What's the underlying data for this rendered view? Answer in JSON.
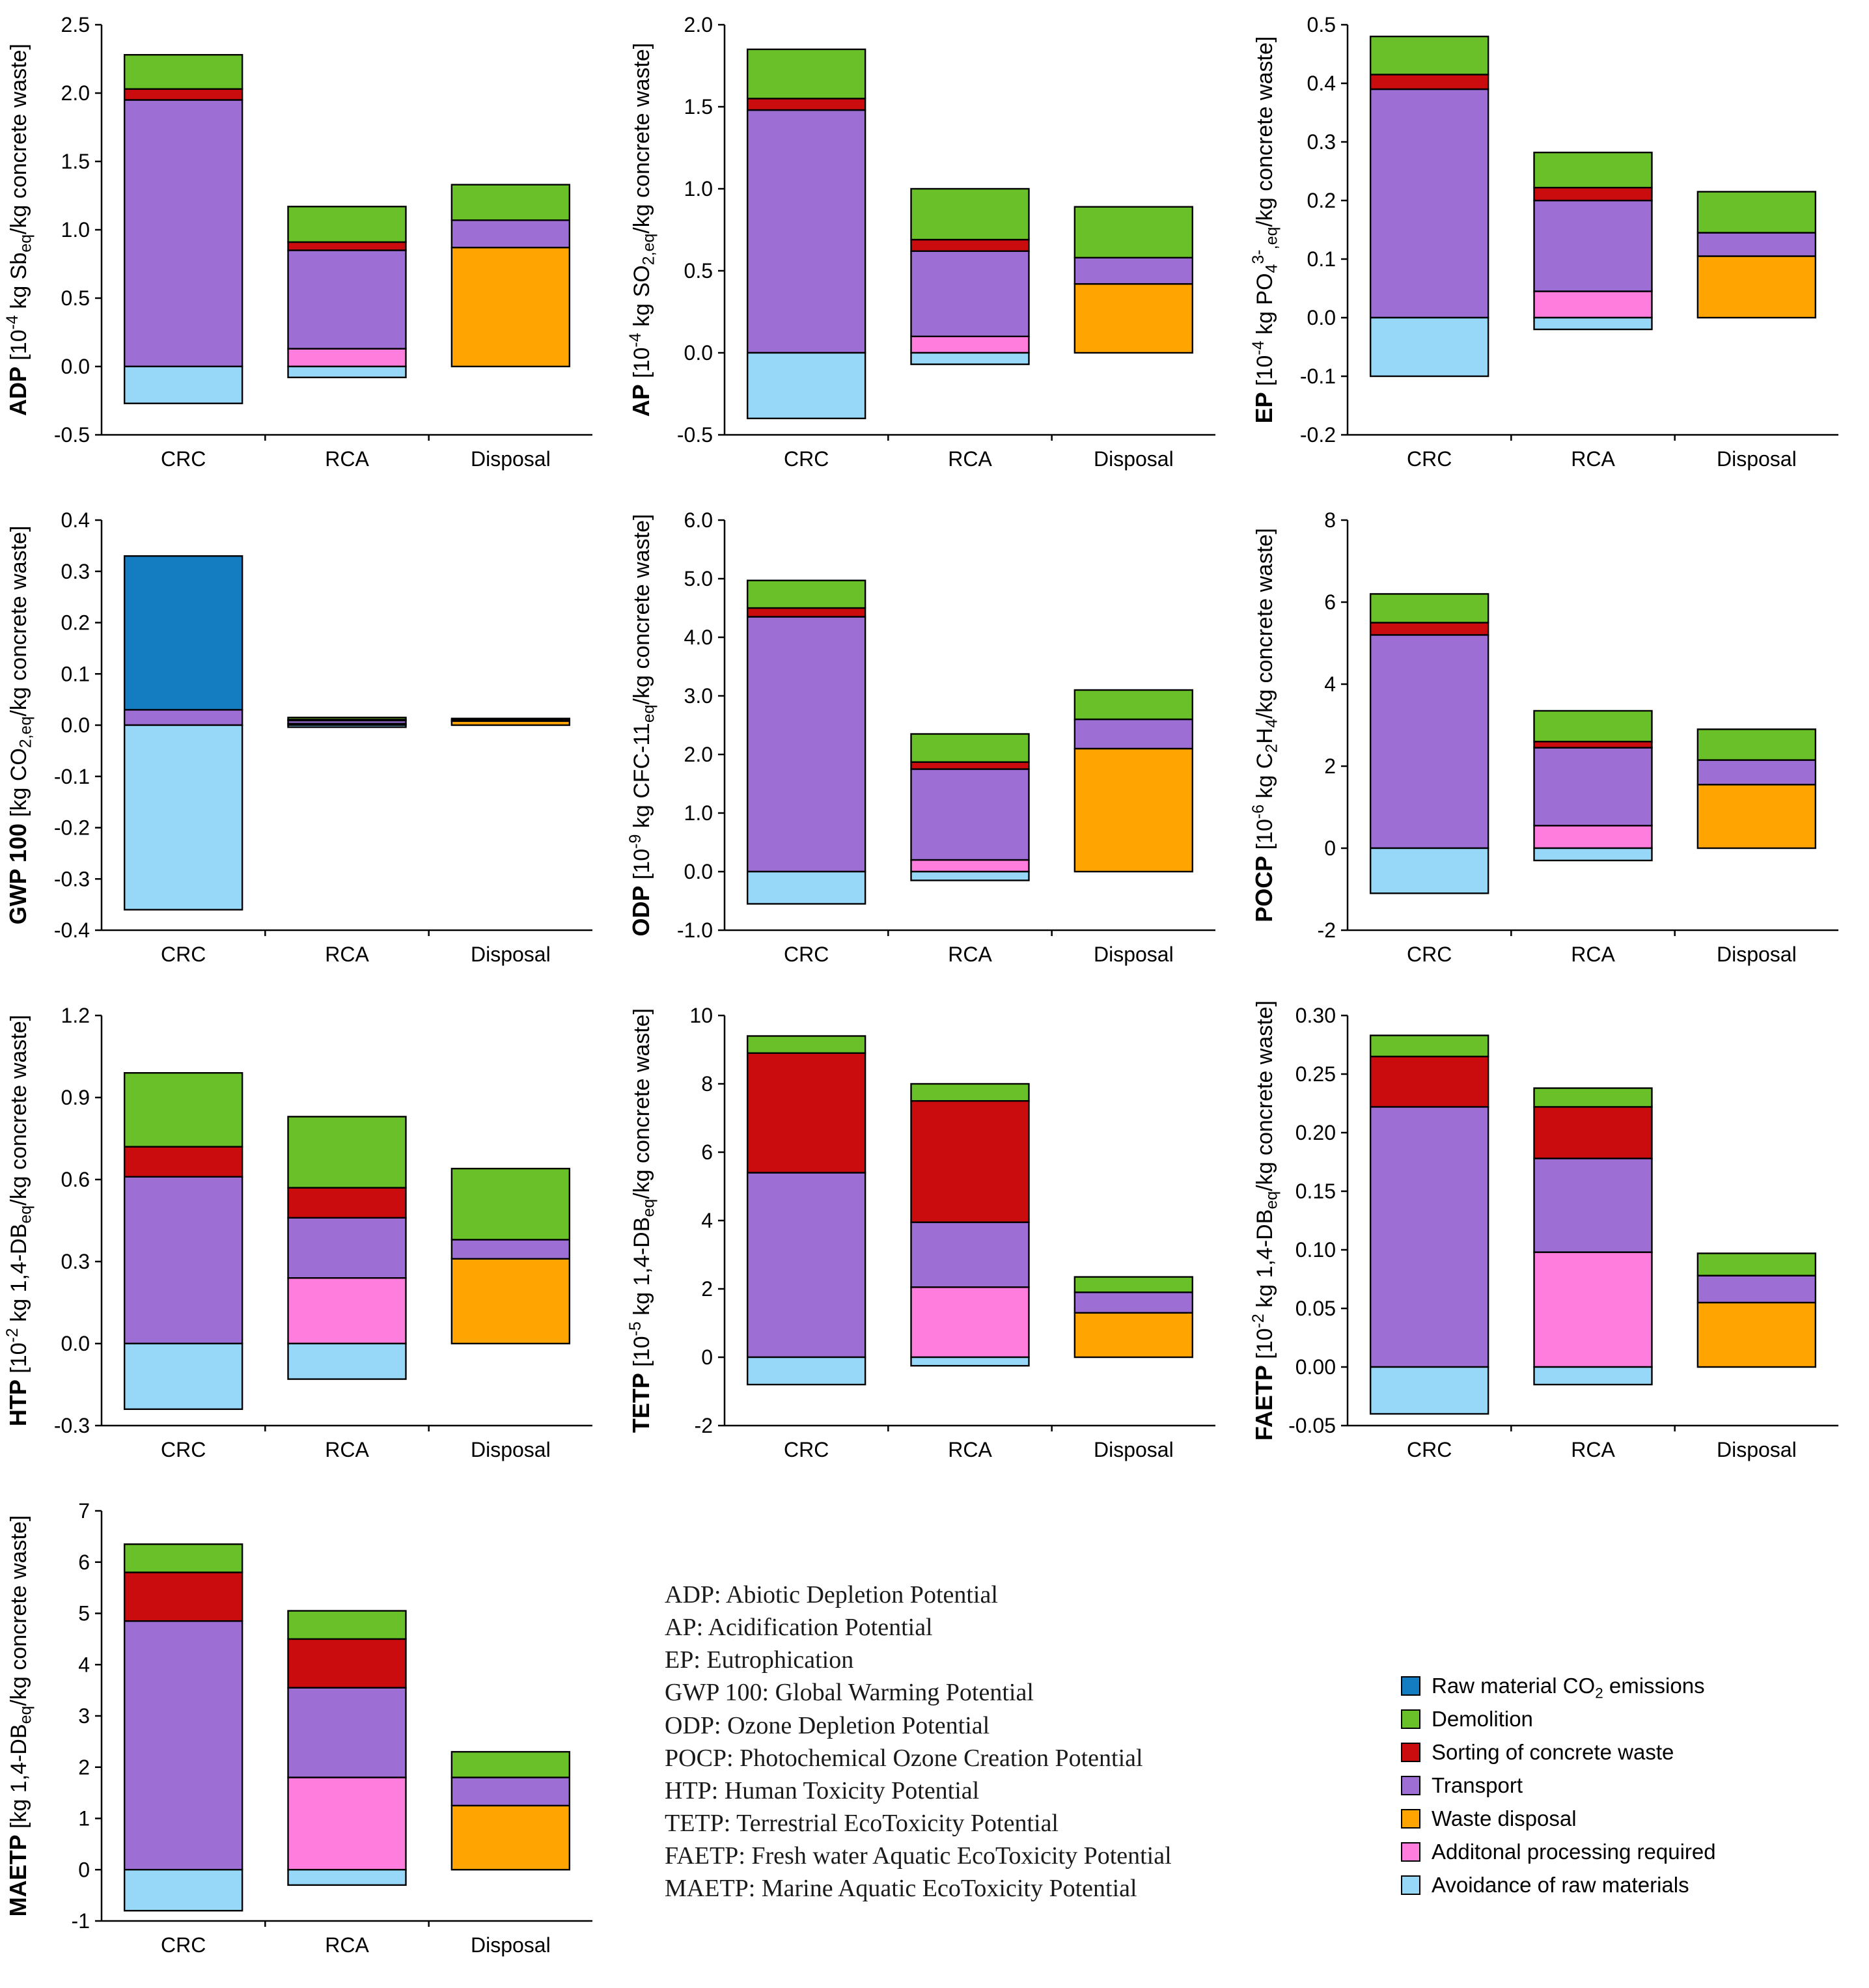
{
  "figure": {
    "background": "#ffffff"
  },
  "colors": {
    "raw": "#147dc2",
    "demolition": "#6ac028",
    "sorting": "#cb0c0f",
    "transport": "#9d6fd5",
    "disposal": "#ffa400",
    "processing": "#ff7ddd",
    "avoidance": "#97d7f8"
  },
  "legend": {
    "items": [
      {
        "key": "raw",
        "label": "Raw material CO_2_ emissions"
      },
      {
        "key": "demolition",
        "label": "Demolition"
      },
      {
        "key": "sorting",
        "label": "Sorting of concrete waste"
      },
      {
        "key": "transport",
        "label": "Transport"
      },
      {
        "key": "disposal",
        "label": "Waste disposal"
      },
      {
        "key": "processing",
        "label": "Additonal processing required"
      },
      {
        "key": "avoidance",
        "label": "Avoidance of raw materials"
      }
    ]
  },
  "abbreviations": [
    "ADP: Abiotic Depletion Potential",
    "AP: Acidification Potential",
    "EP: Eutrophication",
    "GWP 100: Global Warming Potential",
    "ODP: Ozone Depletion Potential",
    "POCP: Photochemical Ozone Creation Potential",
    "HTP: Human Toxicity Potential",
    "TETP: Terrestrial EcoToxicity Potential",
    "FAETP: Fresh water Aquatic EcoToxicity Potential",
    "MAETP: Marine Aquatic EcoToxicity Potential"
  ],
  "chart_data": [
    {
      "id": "adp",
      "type": "bar",
      "stacked": true,
      "name": "ADP",
      "unit": "[10^-4^ kg Sb_eq_/kg concrete waste]",
      "categories": [
        "CRC",
        "RCA",
        "Disposal"
      ],
      "ylim": [
        -0.5,
        2.5
      ],
      "ystep": 0.5,
      "ydecimals": 1,
      "series": [
        [
          [
            "transport",
            1.95
          ],
          [
            "sorting",
            0.08
          ],
          [
            "demolition",
            0.25
          ],
          [
            "avoidance",
            -0.27
          ]
        ],
        [
          [
            "processing",
            0.13
          ],
          [
            "transport",
            0.72
          ],
          [
            "sorting",
            0.06
          ],
          [
            "demolition",
            0.26
          ],
          [
            "avoidance",
            -0.08
          ]
        ],
        [
          [
            "disposal",
            0.87
          ],
          [
            "transport",
            0.2
          ],
          [
            "demolition",
            0.26
          ]
        ]
      ]
    },
    {
      "id": "ap",
      "type": "bar",
      "stacked": true,
      "name": "AP",
      "unit": "[10^-4^ kg SO_2,eq_/kg concrete waste]",
      "categories": [
        "CRC",
        "RCA",
        "Disposal"
      ],
      "ylim": [
        -0.5,
        2.0
      ],
      "ystep": 0.5,
      "ydecimals": 1,
      "series": [
        [
          [
            "transport",
            1.48
          ],
          [
            "sorting",
            0.07
          ],
          [
            "demolition",
            0.3
          ],
          [
            "avoidance",
            -0.4
          ]
        ],
        [
          [
            "processing",
            0.1
          ],
          [
            "transport",
            0.52
          ],
          [
            "sorting",
            0.07
          ],
          [
            "demolition",
            0.31
          ],
          [
            "avoidance",
            -0.07
          ]
        ],
        [
          [
            "disposal",
            0.42
          ],
          [
            "transport",
            0.16
          ],
          [
            "demolition",
            0.31
          ]
        ]
      ]
    },
    {
      "id": "ep",
      "type": "bar",
      "stacked": true,
      "name": "EP",
      "unit": "[10^-4^ kg PO_4_^3-^_,eq_/kg concrete waste]",
      "categories": [
        "CRC",
        "RCA",
        "Disposal"
      ],
      "ylim": [
        -0.2,
        0.5
      ],
      "ystep": 0.1,
      "ydecimals": 1,
      "series": [
        [
          [
            "transport",
            0.39
          ],
          [
            "sorting",
            0.025
          ],
          [
            "demolition",
            0.065
          ],
          [
            "avoidance",
            -0.1
          ]
        ],
        [
          [
            "processing",
            0.045
          ],
          [
            "transport",
            0.155
          ],
          [
            "sorting",
            0.022
          ],
          [
            "demolition",
            0.06
          ],
          [
            "avoidance",
            -0.02
          ]
        ],
        [
          [
            "disposal",
            0.105
          ],
          [
            "transport",
            0.04
          ],
          [
            "demolition",
            0.07
          ]
        ]
      ]
    },
    {
      "id": "gwp",
      "type": "bar",
      "stacked": true,
      "name": "GWP 100",
      "unit": "[kg CO_2,eq_/kg concrete waste]",
      "categories": [
        "CRC",
        "RCA",
        "Disposal"
      ],
      "ylim": [
        -0.4,
        0.4
      ],
      "ystep": 0.1,
      "ydecimals": 1,
      "series": [
        [
          [
            "transport",
            0.03
          ],
          [
            "raw",
            0.3
          ],
          [
            "avoidance",
            -0.36
          ]
        ],
        [
          [
            "processing",
            0.003
          ],
          [
            "transport",
            0.006
          ],
          [
            "sorting",
            0.002
          ],
          [
            "demolition",
            0.004
          ],
          [
            "avoidance",
            -0.004
          ]
        ],
        [
          [
            "disposal",
            0.008
          ],
          [
            "transport",
            0.002
          ],
          [
            "demolition",
            0.003
          ]
        ]
      ]
    },
    {
      "id": "odp",
      "type": "bar",
      "stacked": true,
      "name": "ODP",
      "unit": "[10^-9^ kg CFC-11_eq_/kg concrete waste]",
      "categories": [
        "CRC",
        "RCA",
        "Disposal"
      ],
      "ylim": [
        -1.0,
        6.0
      ],
      "ystep": 1.0,
      "ydecimals": 1,
      "series": [
        [
          [
            "transport",
            4.35
          ],
          [
            "sorting",
            0.15
          ],
          [
            "demolition",
            0.47
          ],
          [
            "avoidance",
            -0.55
          ]
        ],
        [
          [
            "processing",
            0.2
          ],
          [
            "transport",
            1.55
          ],
          [
            "sorting",
            0.12
          ],
          [
            "demolition",
            0.48
          ],
          [
            "avoidance",
            -0.15
          ]
        ],
        [
          [
            "disposal",
            2.1
          ],
          [
            "transport",
            0.5
          ],
          [
            "demolition",
            0.5
          ]
        ]
      ]
    },
    {
      "id": "pocp",
      "type": "bar",
      "stacked": true,
      "name": "POCP",
      "unit": "[10^-6^ kg C_2_H_4_/kg concrete waste]",
      "categories": [
        "CRC",
        "RCA",
        "Disposal"
      ],
      "ylim": [
        -2,
        8
      ],
      "ystep": 2,
      "ydecimals": 0,
      "series": [
        [
          [
            "transport",
            5.2
          ],
          [
            "sorting",
            0.3
          ],
          [
            "demolition",
            0.7
          ],
          [
            "avoidance",
            -1.1
          ]
        ],
        [
          [
            "processing",
            0.55
          ],
          [
            "transport",
            1.9
          ],
          [
            "sorting",
            0.15
          ],
          [
            "demolition",
            0.75
          ],
          [
            "avoidance",
            -0.3
          ]
        ],
        [
          [
            "disposal",
            1.55
          ],
          [
            "transport",
            0.6
          ],
          [
            "demolition",
            0.75
          ]
        ]
      ]
    },
    {
      "id": "htp",
      "type": "bar",
      "stacked": true,
      "name": "HTP",
      "unit": "[10^-2^ kg 1,4-DB_eq_/kg concrete waste]",
      "categories": [
        "CRC",
        "RCA",
        "Disposal"
      ],
      "ylim": [
        -0.3,
        1.2
      ],
      "ystep": 0.3,
      "ydecimals": 1,
      "series": [
        [
          [
            "transport",
            0.61
          ],
          [
            "sorting",
            0.11
          ],
          [
            "demolition",
            0.27
          ],
          [
            "avoidance",
            -0.24
          ]
        ],
        [
          [
            "processing",
            0.24
          ],
          [
            "transport",
            0.22
          ],
          [
            "sorting",
            0.11
          ],
          [
            "demolition",
            0.26
          ],
          [
            "avoidance",
            -0.13
          ]
        ],
        [
          [
            "disposal",
            0.31
          ],
          [
            "transport",
            0.07
          ],
          [
            "demolition",
            0.26
          ]
        ]
      ]
    },
    {
      "id": "tetp",
      "type": "bar",
      "stacked": true,
      "name": "TETP",
      "unit": "[10^-5^ kg 1,4-DB_eq_/kg concrete waste]",
      "categories": [
        "CRC",
        "RCA",
        "Disposal"
      ],
      "ylim": [
        -2,
        10
      ],
      "ystep": 2,
      "ydecimals": 0,
      "series": [
        [
          [
            "transport",
            5.4
          ],
          [
            "sorting",
            3.5
          ],
          [
            "demolition",
            0.5
          ],
          [
            "avoidance",
            -0.8
          ]
        ],
        [
          [
            "processing",
            2.05
          ],
          [
            "transport",
            1.9
          ],
          [
            "sorting",
            3.55
          ],
          [
            "demolition",
            0.5
          ],
          [
            "avoidance",
            -0.25
          ]
        ],
        [
          [
            "disposal",
            1.3
          ],
          [
            "transport",
            0.6
          ],
          [
            "demolition",
            0.45
          ]
        ]
      ]
    },
    {
      "id": "faetp",
      "type": "bar",
      "stacked": true,
      "name": "FAETP",
      "unit": "[10^-2^ kg 1,4-DB_eq_/kg concrete waste]",
      "categories": [
        "CRC",
        "RCA",
        "Disposal"
      ],
      "ylim": [
        -0.05,
        0.3
      ],
      "ystep": 0.05,
      "ydecimals": 2,
      "series": [
        [
          [
            "transport",
            0.222
          ],
          [
            "sorting",
            0.043
          ],
          [
            "demolition",
            0.018
          ],
          [
            "avoidance",
            -0.04
          ]
        ],
        [
          [
            "processing",
            0.098
          ],
          [
            "transport",
            0.08
          ],
          [
            "sorting",
            0.044
          ],
          [
            "demolition",
            0.016
          ],
          [
            "avoidance",
            -0.015
          ]
        ],
        [
          [
            "disposal",
            0.055
          ],
          [
            "transport",
            0.023
          ],
          [
            "demolition",
            0.019
          ]
        ]
      ]
    },
    {
      "id": "maetp",
      "type": "bar",
      "stacked": true,
      "name": "MAETP",
      "unit": "[kg 1,4-DB_eq_/kg concrete waste]",
      "categories": [
        "CRC",
        "RCA",
        "Disposal"
      ],
      "ylim": [
        -1,
        7
      ],
      "ystep": 1,
      "ydecimals": 0,
      "series": [
        [
          [
            "transport",
            4.85
          ],
          [
            "sorting",
            0.95
          ],
          [
            "demolition",
            0.55
          ],
          [
            "avoidance",
            -0.8
          ]
        ],
        [
          [
            "processing",
            1.8
          ],
          [
            "transport",
            1.75
          ],
          [
            "sorting",
            0.95
          ],
          [
            "demolition",
            0.55
          ],
          [
            "avoidance",
            -0.3
          ]
        ],
        [
          [
            "disposal",
            1.25
          ],
          [
            "transport",
            0.55
          ],
          [
            "demolition",
            0.5
          ]
        ]
      ]
    }
  ]
}
